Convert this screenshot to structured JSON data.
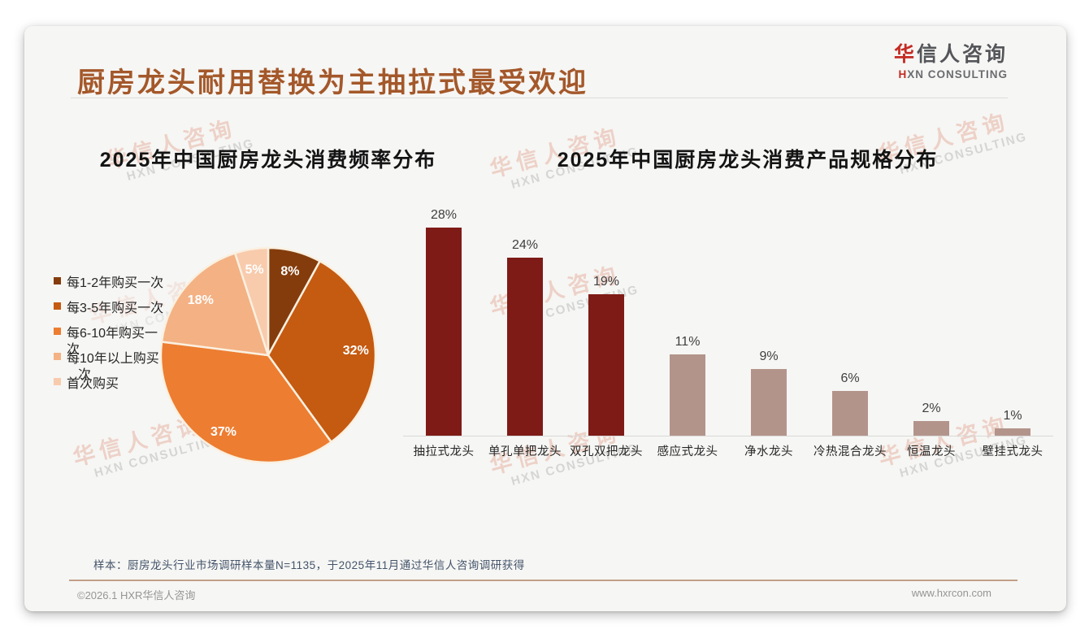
{
  "slide": {
    "title": "厨房龙头耐用替换为主抽拉式最受欢迎",
    "logo": {
      "cn_first": "华",
      "cn_rest": "信人咨询",
      "en_first": "H",
      "en_rest": "XN CONSULTING"
    },
    "source_note": "样本：厨房龙头行业市场调研样本量N=1135，于2025年11月通过华信人咨询调研获得",
    "footer_left": "©2026.1 HXR华信人咨询",
    "footer_right": "www.hxrcon.com",
    "watermark": {
      "cn": "华信人咨询",
      "en": "HXN CONSULTING"
    }
  },
  "colors": {
    "title_accent": "#A4582A",
    "logo_red": "#C42B23",
    "card_background": "#F6F6F4",
    "bar_dark_red": "#7E1B16",
    "bar_taupe": "#B3948B",
    "footer_divider_tan": "#C2A088"
  },
  "chart_data": [
    {
      "type": "pie",
      "title": "2025年中国厨房龙头消费频率分布",
      "start_angle_deg": 0,
      "direction": "clockwise",
      "legend_position": "left",
      "series": [
        {
          "label": "每1-2年购买一次",
          "value": 8,
          "data_label": "8%",
          "color": "#843C0C",
          "legend_line": "每1-2年购买一次",
          "legend_wrap": ""
        },
        {
          "label": "每3-5年购买一次",
          "value": 32,
          "data_label": "32%",
          "color": "#C55A11",
          "legend_line": "每3-5年购买一次",
          "legend_wrap": ""
        },
        {
          "label": "每6-10年购买一次",
          "value": 37,
          "data_label": "37%",
          "color": "#ED7D31",
          "legend_line": "每6-10年购买一",
          "legend_wrap": "次"
        },
        {
          "label": "每10年以上购买一次",
          "value": 18,
          "data_label": "18%",
          "color": "#F4B183",
          "legend_line": "每10年以上购买",
          "legend_wrap": "次"
        },
        {
          "label": "首次购买",
          "value": 5,
          "data_label": "5%",
          "color": "#F8CBAD",
          "legend_line": "首次购买",
          "legend_wrap": ""
        }
      ]
    },
    {
      "type": "bar",
      "title": "2025年中国厨房龙头消费产品规格分布",
      "categories": [
        "抽拉式龙头",
        "单孔单把龙头",
        "双孔双把龙头",
        "感应式龙头",
        "净水龙头",
        "冷热混合龙头",
        "恒温龙头",
        "壁挂式龙头"
      ],
      "values": [
        28,
        24,
        19,
        11,
        9,
        6,
        2,
        1
      ],
      "data_labels": [
        "28%",
        "24%",
        "19%",
        "11%",
        "9%",
        "6%",
        "2%",
        "1%"
      ],
      "bar_colors": [
        "#7E1B16",
        "#7E1B16",
        "#7E1B16",
        "#B3948B",
        "#B3948B",
        "#B3948B",
        "#B3948B",
        "#B3948B"
      ],
      "ylim": [
        0,
        30
      ],
      "grid": false,
      "value_axis_visible": false
    }
  ]
}
